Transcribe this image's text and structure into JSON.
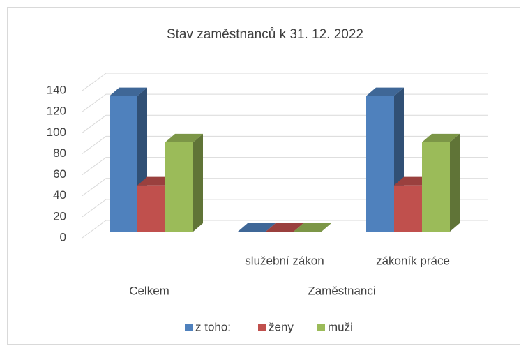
{
  "chart_data": {
    "type": "bar3d",
    "title": "Stav zaměstnanců k 31. 12. 2022",
    "category_groups": [
      {
        "name": "Celkem",
        "categories": [
          null
        ]
      },
      {
        "name": "Zaměstnanci",
        "categories": [
          "služební zákon",
          "zákoník práce"
        ]
      }
    ],
    "series": [
      {
        "name": "z toho:",
        "color": "#4f81bd",
        "values": [
          129,
          0,
          129
        ]
      },
      {
        "name": "ženy",
        "color": "#c0504d",
        "values": [
          44,
          0,
          44
        ]
      },
      {
        "name": "muži",
        "color": "#9bbb59",
        "values": [
          85,
          0,
          85
        ]
      }
    ],
    "ylim": [
      0,
      140
    ],
    "yticks": [
      0,
      20,
      40,
      60,
      80,
      100,
      120,
      140
    ],
    "grid": true,
    "legend": "bottom"
  }
}
